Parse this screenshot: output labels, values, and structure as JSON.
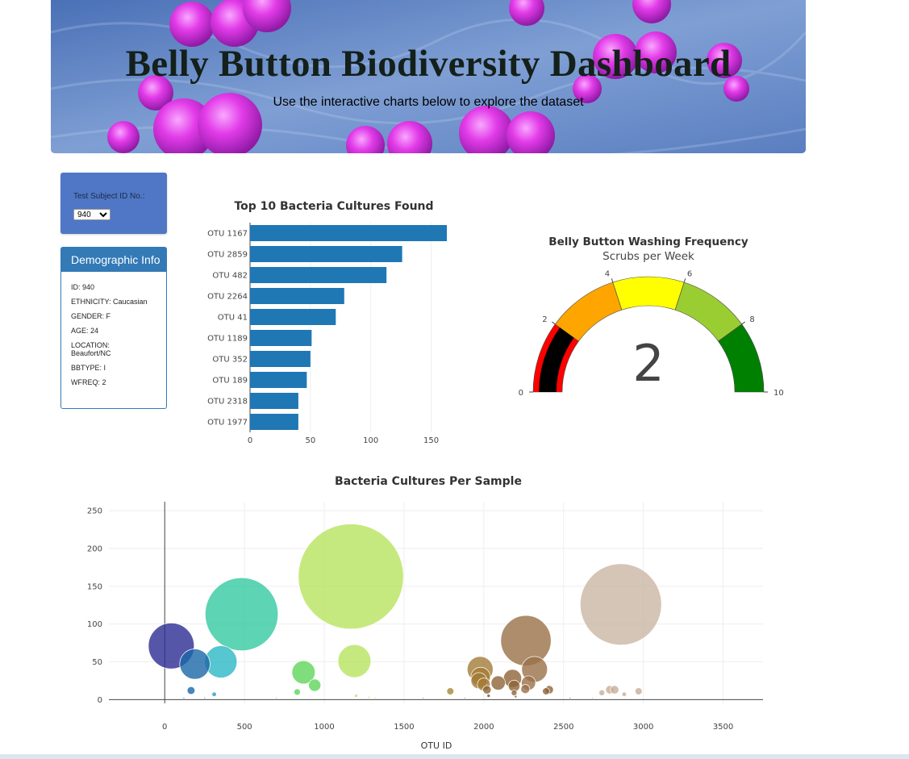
{
  "banner": {
    "title": "Belly Button Biodiversity Dashboard",
    "subtitle": "Use the interactive charts below to explore the dataset"
  },
  "selector": {
    "label": "Test Subject ID No.:",
    "selected": "940"
  },
  "demographics": {
    "title": "Demographic Info",
    "rows": [
      "ID: 940",
      "ETHNICITY: Caucasian",
      "GENDER: F",
      "AGE: 24",
      "LOCATION: Beaufort/NC",
      "BBTYPE: I",
      "WFREQ: 2"
    ]
  },
  "bar_chart": {
    "title": "Top 10 Bacteria Cultures Found"
  },
  "gauge": {
    "title": "Belly Button Washing Frequency",
    "subtitle": "Scrubs per Week",
    "value": 2,
    "range": [
      0,
      10
    ],
    "tick_labels": [
      "0",
      "2",
      "4",
      "6",
      "8",
      "10"
    ],
    "band_colors": [
      "#ff0000",
      "#ffa500",
      "#ffff00",
      "#9acd32",
      "#008000"
    ],
    "bar_color": "#000000"
  },
  "bubble_chart": {
    "title": "Bacteria Cultures Per Sample",
    "xlabel": "OTU ID"
  },
  "chart_data": [
    {
      "type": "bar",
      "orientation": "horizontal",
      "title": "Top 10 Bacteria Cultures Found",
      "categories": [
        "OTU 1167",
        "OTU 2859",
        "OTU 482",
        "OTU 2264",
        "OTU 41",
        "OTU 1189",
        "OTU 352",
        "OTU 189",
        "OTU 2318",
        "OTU 1977"
      ],
      "values": [
        163,
        126,
        113,
        78,
        71,
        51,
        50,
        47,
        40,
        40
      ],
      "xticks": [
        0,
        50,
        100,
        150
      ],
      "xlim": [
        0,
        171
      ],
      "color": "#1f77b4"
    },
    {
      "type": "scatter",
      "subtype": "bubble",
      "title": "Bacteria Cultures Per Sample",
      "xlabel": "OTU ID",
      "ylabel": "",
      "xlim": [
        -350,
        3750
      ],
      "ylim": [
        -5,
        262
      ],
      "xticks": [
        0,
        500,
        1000,
        1500,
        2000,
        2500,
        3000,
        3500
      ],
      "yticks": [
        0,
        50,
        100,
        150,
        200,
        250
      ],
      "grid": true,
      "points": [
        {
          "x": 1167,
          "y": 163,
          "color": "#b8e35f"
        },
        {
          "x": 2859,
          "y": 126,
          "color": "#cbb6a5"
        },
        {
          "x": 482,
          "y": 113,
          "color": "#35c9a0"
        },
        {
          "x": 2264,
          "y": 78,
          "color": "#9a7048"
        },
        {
          "x": 41,
          "y": 71,
          "color": "#2c2c93"
        },
        {
          "x": 1189,
          "y": 51,
          "color": "#b8e35f"
        },
        {
          "x": 352,
          "y": 50,
          "color": "#2cb8c4"
        },
        {
          "x": 189,
          "y": 47,
          "color": "#1a66a8"
        },
        {
          "x": 2318,
          "y": 40,
          "color": "#9a7048"
        },
        {
          "x": 1977,
          "y": 40,
          "color": "#a47c37"
        },
        {
          "x": 870,
          "y": 36,
          "color": "#5fd65a"
        },
        {
          "x": 1980,
          "y": 30,
          "color": "#a47c37"
        },
        {
          "x": 2180,
          "y": 28,
          "color": "#8e6437"
        },
        {
          "x": 2280,
          "y": 22,
          "color": "#9a7048"
        },
        {
          "x": 2090,
          "y": 22,
          "color": "#8e6437"
        },
        {
          "x": 1970,
          "y": 25,
          "color": "#a47c37"
        },
        {
          "x": 940,
          "y": 19,
          "color": "#5fd65a"
        },
        {
          "x": 2190,
          "y": 18,
          "color": "#8e6437"
        },
        {
          "x": 2000,
          "y": 20,
          "color": "#a47c37"
        },
        {
          "x": 2260,
          "y": 14,
          "color": "#9a7048"
        },
        {
          "x": 2410,
          "y": 13,
          "color": "#8e6437"
        },
        {
          "x": 2020,
          "y": 13,
          "color": "#8e6437"
        },
        {
          "x": 2390,
          "y": 11,
          "color": "#8e6437"
        },
        {
          "x": 2790,
          "y": 13,
          "color": "#c8ad98"
        },
        {
          "x": 2820,
          "y": 13,
          "color": "#c8ad98"
        },
        {
          "x": 2970,
          "y": 11,
          "color": "#c8ad98"
        },
        {
          "x": 2740,
          "y": 9,
          "color": "#c8ad98"
        },
        {
          "x": 1790,
          "y": 11,
          "color": "#a58a3a"
        },
        {
          "x": 2190,
          "y": 9,
          "color": "#8e6437"
        },
        {
          "x": 165,
          "y": 12,
          "color": "#1a66a8"
        },
        {
          "x": 830,
          "y": 10,
          "color": "#5fd65a"
        },
        {
          "x": 310,
          "y": 7,
          "color": "#2c9cc4"
        },
        {
          "x": 2030,
          "y": 5,
          "color": "#6a4a2a"
        },
        {
          "x": 2880,
          "y": 7,
          "color": "#c8ad98"
        },
        {
          "x": 1200,
          "y": 5,
          "color": "#b8e35f"
        },
        {
          "x": 1280,
          "y": 3,
          "color": "#b8e35f"
        },
        {
          "x": 2200,
          "y": 4,
          "color": "#8e6437"
        },
        {
          "x": 1320,
          "y": 2,
          "color": "#b8e35f"
        },
        {
          "x": 120,
          "y": 2,
          "color": "#1a66a8"
        },
        {
          "x": 250,
          "y": 2,
          "color": "#2c9cc4"
        },
        {
          "x": 2540,
          "y": 2,
          "color": "#8e6437"
        },
        {
          "x": 2680,
          "y": 2,
          "color": "#c8ad98"
        },
        {
          "x": 1620,
          "y": 2,
          "color": "#a58a3a"
        },
        {
          "x": 1880,
          "y": 2,
          "color": "#a58a3a"
        },
        {
          "x": 700,
          "y": 2,
          "color": "#5fd65a"
        }
      ]
    }
  ]
}
